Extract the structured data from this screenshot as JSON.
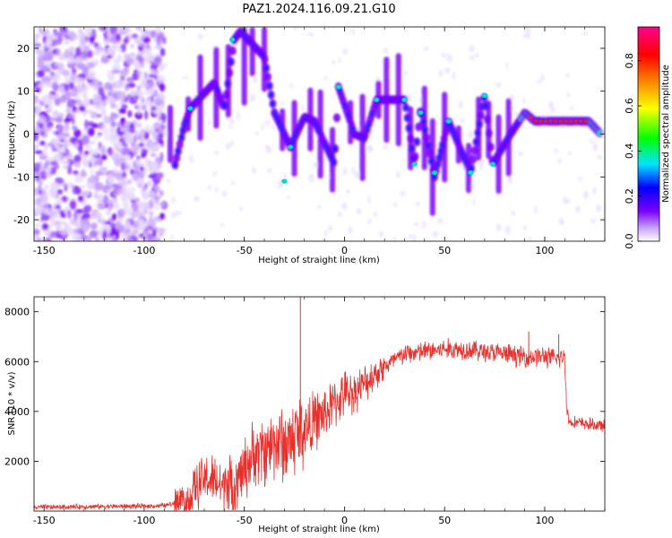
{
  "title": "PAZ1.2024.116.09.21.G10",
  "chart_data": [
    {
      "type": "heatmap",
      "xlabel": "Height of straight line (km)",
      "ylabel": "Frequency (Hz)",
      "xlim": [
        -155,
        130
      ],
      "ylim": [
        -25,
        25
      ],
      "xticks": [
        -150,
        -100,
        -50,
        0,
        50,
        100
      ],
      "yticks": [
        -20,
        -10,
        0,
        10,
        20
      ],
      "colorbar": {
        "label": "Normalized spectral amplitude",
        "range": [
          0,
          0.95
        ],
        "ticks": [
          0.0,
          0.2,
          0.4,
          0.6,
          0.8
        ],
        "colormap": [
          "#ffffff",
          "#7b00ff",
          "#0000ff",
          "#00e5ff",
          "#00ff00",
          "#ffff00",
          "#ff8000",
          "#ff0000",
          "#ff0090"
        ]
      },
      "ridge": [
        {
          "x": -85,
          "y": -8
        },
        {
          "x": -80,
          "y": 2
        },
        {
          "x": -77,
          "y": 6
        },
        {
          "x": -65,
          "y": 12
        },
        {
          "x": -60,
          "y": 6
        },
        {
          "x": -55,
          "y": 22
        },
        {
          "x": -52,
          "y": 24
        },
        {
          "x": -40,
          "y": 18
        },
        {
          "x": -35,
          "y": 5
        },
        {
          "x": -27,
          "y": -3
        },
        {
          "x": -20,
          "y": 4
        },
        {
          "x": -15,
          "y": 3
        },
        {
          "x": -5,
          "y": -7
        },
        {
          "x": -3,
          "y": 11
        },
        {
          "x": 5,
          "y": 0
        },
        {
          "x": 10,
          "y": -1
        },
        {
          "x": 16,
          "y": 8
        },
        {
          "x": 30,
          "y": 8
        },
        {
          "x": 35,
          "y": -7
        },
        {
          "x": 38,
          "y": 6
        },
        {
          "x": 45,
          "y": -10
        },
        {
          "x": 52,
          "y": 3
        },
        {
          "x": 63,
          "y": -9
        },
        {
          "x": 70,
          "y": 9
        },
        {
          "x": 74,
          "y": -7
        },
        {
          "x": 83,
          "y": 0
        },
        {
          "x": 90,
          "y": 5
        },
        {
          "x": 95,
          "y": 3
        },
        {
          "x": 110,
          "y": 3
        },
        {
          "x": 122,
          "y": 3
        },
        {
          "x": 128,
          "y": 0
        }
      ]
    },
    {
      "type": "line",
      "xlabel": "Height of straight line (km)",
      "ylabel": "SNR (10 * v/v)",
      "xlim": [
        -155,
        130
      ],
      "ylim": [
        0,
        8600
      ],
      "xticks": [
        -150,
        -100,
        -50,
        0,
        50,
        100
      ],
      "yticks": [
        2000,
        4000,
        6000,
        8000
      ],
      "color": "#e8302c",
      "series": [
        {
          "x": [
            -155,
            -130,
            -100,
            -90,
            -85,
            -80,
            -75,
            -70,
            -65,
            -60,
            -55,
            -50,
            -45,
            -40,
            -35,
            -30,
            -25,
            -20,
            -15,
            -10,
            -5,
            0,
            5,
            10,
            15,
            20,
            30,
            40,
            50,
            60,
            70,
            80,
            90,
            100,
            105,
            110,
            111,
            112,
            120,
            130
          ],
          "y": [
            150,
            180,
            200,
            220,
            300,
            500,
            800,
            1300,
            1200,
            900,
            1100,
            1700,
            2300,
            2400,
            2800,
            2600,
            3000,
            3300,
            3600,
            3900,
            4300,
            4700,
            4800,
            5100,
            5500,
            5800,
            6300,
            6400,
            6500,
            6500,
            6400,
            6300,
            6200,
            6200,
            6100,
            6200,
            4200,
            3600,
            3500,
            3400
          ]
        }
      ],
      "spikes": [
        {
          "x": -22,
          "y": 8600
        },
        {
          "x": 92,
          "y": 7200
        },
        {
          "x": 107,
          "y": 7100
        }
      ]
    }
  ]
}
